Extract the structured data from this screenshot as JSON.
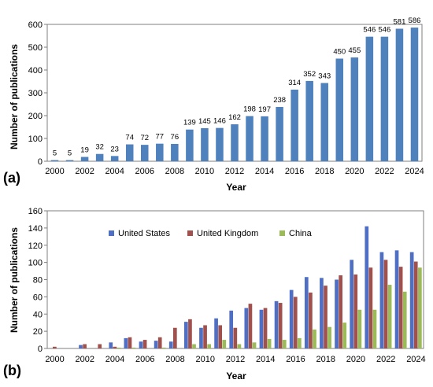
{
  "chart_data": [
    {
      "type": "bar",
      "panel_label": "(a)",
      "xlabel": "Year",
      "ylabel": "Number of publications",
      "ylim": [
        0,
        600
      ],
      "yticks": [
        0,
        100,
        200,
        300,
        400,
        500,
        600
      ],
      "xtick_labels": [
        "2000",
        "2002",
        "2004",
        "2006",
        "2008",
        "2010",
        "2012",
        "2014",
        "2016",
        "2018",
        "2020",
        "2022",
        "2024"
      ],
      "categories": [
        "2000",
        "2001",
        "2002",
        "2003",
        "2004",
        "2005",
        "2006",
        "2007",
        "2008",
        "2009",
        "2010",
        "2011",
        "2012",
        "2013",
        "2014",
        "2015",
        "2016",
        "2017",
        "2018",
        "2019",
        "2020",
        "2021",
        "2022",
        "2023",
        "2024"
      ],
      "values": [
        5,
        5,
        19,
        32,
        23,
        74,
        72,
        77,
        76,
        139,
        145,
        146,
        162,
        198,
        197,
        238,
        314,
        352,
        343,
        450,
        455,
        546,
        546,
        581,
        586
      ],
      "color": "#4f81bd",
      "data_labels": true,
      "grid": false
    },
    {
      "type": "bar",
      "panel_label": "(b)",
      "xlabel": "Year",
      "ylabel": "Number of publications",
      "ylim": [
        0,
        160
      ],
      "yticks": [
        0,
        20,
        40,
        60,
        80,
        100,
        120,
        140,
        160
      ],
      "xtick_labels": [
        "2000",
        "2002",
        "2004",
        "2006",
        "2008",
        "2010",
        "2012",
        "2014",
        "2016",
        "2018",
        "2020",
        "2022",
        "2024"
      ],
      "categories": [
        "2000",
        "2001",
        "2002",
        "2003",
        "2004",
        "2005",
        "2006",
        "2007",
        "2008",
        "2009",
        "2010",
        "2011",
        "2012",
        "2013",
        "2014",
        "2015",
        "2016",
        "2017",
        "2018",
        "2019",
        "2020",
        "2021",
        "2022",
        "2023",
        "2024"
      ],
      "series": [
        {
          "name": "United States",
          "color": "#4f6fc4",
          "values": [
            0,
            0,
            4,
            0,
            7,
            12,
            8,
            9,
            8,
            31,
            24,
            35,
            44,
            47,
            45,
            55,
            68,
            83,
            82,
            80,
            103,
            142,
            112,
            114,
            112
          ]
        },
        {
          "name": "United Kingdom",
          "color": "#a0514e",
          "values": [
            2,
            0,
            5,
            5,
            2,
            13,
            10,
            13,
            24,
            34,
            27,
            27,
            24,
            52,
            47,
            53,
            60,
            65,
            73,
            85,
            86,
            94,
            103,
            95,
            101
          ]
        },
        {
          "name": "China",
          "color": "#9bbb59",
          "values": [
            0,
            0,
            0,
            0,
            1,
            1,
            0,
            1,
            0,
            5,
            5,
            10,
            5,
            7,
            11,
            10,
            12,
            22,
            25,
            30,
            45,
            45,
            74,
            66,
            94
          ]
        }
      ],
      "legend_position": "top",
      "grid": false
    }
  ]
}
